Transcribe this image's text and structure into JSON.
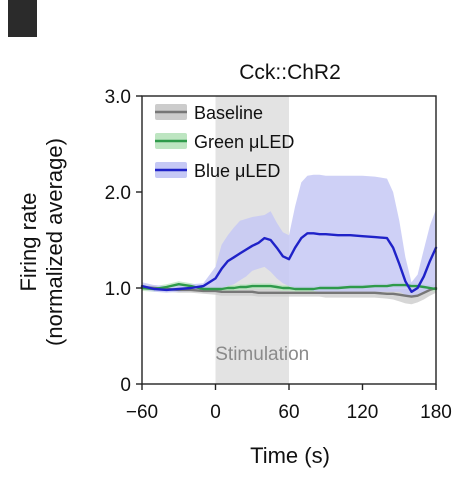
{
  "chart_data": {
    "type": "line",
    "title": "Cck::ChR2",
    "xlabel": "Time (s)",
    "ylabel_lines": [
      "Firing rate",
      "(normalized average)"
    ],
    "xlim": [
      -60,
      180
    ],
    "ylim": [
      0,
      3.0
    ],
    "xticks": [
      -60,
      0,
      60,
      120,
      180
    ],
    "xtick_labels": [
      "−60",
      "0",
      "60",
      "120",
      "180"
    ],
    "yticks": [
      0,
      1.0,
      2.0,
      3.0
    ],
    "ytick_labels": [
      "0",
      "1.0",
      "2.0",
      "3.0"
    ],
    "shaded_region": {
      "x": [
        0,
        60
      ],
      "label": "Stimulation",
      "color": "#e3e3e3"
    },
    "legend_position": "top-left",
    "x": [
      -60,
      -50,
      -40,
      -30,
      -20,
      -10,
      0,
      5,
      10,
      15,
      20,
      25,
      30,
      35,
      40,
      45,
      50,
      55,
      60,
      65,
      70,
      75,
      80,
      85,
      90,
      100,
      110,
      120,
      130,
      140,
      145,
      150,
      155,
      160,
      165,
      170,
      175,
      180
    ],
    "series": [
      {
        "name": "Baseline",
        "color": "#777777",
        "band_color": "#cccccc",
        "values": [
          1.01,
          1.0,
          0.99,
          0.98,
          0.98,
          0.97,
          0.97,
          0.96,
          0.96,
          0.96,
          0.96,
          0.96,
          0.96,
          0.95,
          0.95,
          0.95,
          0.95,
          0.95,
          0.95,
          0.95,
          0.95,
          0.95,
          0.95,
          0.95,
          0.95,
          0.95,
          0.95,
          0.95,
          0.95,
          0.94,
          0.94,
          0.93,
          0.92,
          0.91,
          0.92,
          0.95,
          0.98,
          1.0
        ],
        "lower": [
          0.98,
          0.97,
          0.96,
          0.95,
          0.95,
          0.94,
          0.93,
          0.92,
          0.92,
          0.92,
          0.92,
          0.92,
          0.92,
          0.91,
          0.91,
          0.91,
          0.91,
          0.91,
          0.91,
          0.91,
          0.91,
          0.91,
          0.91,
          0.91,
          0.9,
          0.9,
          0.9,
          0.9,
          0.9,
          0.89,
          0.88,
          0.86,
          0.84,
          0.83,
          0.85,
          0.88,
          0.92,
          0.95
        ],
        "upper": [
          1.04,
          1.03,
          1.02,
          1.01,
          1.01,
          1.0,
          1.0,
          1.0,
          1.0,
          1.0,
          1.0,
          1.0,
          1.0,
          0.99,
          0.99,
          0.99,
          0.99,
          0.99,
          0.99,
          0.99,
          0.99,
          0.99,
          0.99,
          0.99,
          0.99,
          0.99,
          0.99,
          0.99,
          0.99,
          0.99,
          0.99,
          0.99,
          0.99,
          0.99,
          0.99,
          1.01,
          1.03,
          1.05
        ]
      },
      {
        "name": "Green μLED",
        "color": "#2e9a4a",
        "band_color": "#bde5c1",
        "values": [
          1.0,
          0.99,
          1.01,
          1.04,
          1.02,
          0.99,
          0.99,
          0.99,
          1.0,
          1.0,
          1.01,
          1.01,
          1.02,
          1.02,
          1.02,
          1.02,
          1.01,
          1.0,
          1.0,
          0.99,
          0.99,
          0.99,
          0.99,
          1.0,
          1.0,
          1.0,
          1.01,
          1.01,
          1.02,
          1.02,
          1.03,
          1.03,
          1.03,
          1.02,
          1.02,
          1.01,
          1.0,
          0.99
        ],
        "lower": [
          0.97,
          0.96,
          0.98,
          1.01,
          0.99,
          0.96,
          0.96,
          0.96,
          0.97,
          0.97,
          0.98,
          0.98,
          0.99,
          0.99,
          0.99,
          0.99,
          0.98,
          0.97,
          0.97,
          0.96,
          0.96,
          0.96,
          0.96,
          0.97,
          0.97,
          0.97,
          0.98,
          0.98,
          0.99,
          0.99,
          1.0,
          1.0,
          1.0,
          0.99,
          0.99,
          0.98,
          0.97,
          0.96
        ],
        "upper": [
          1.03,
          1.02,
          1.04,
          1.07,
          1.05,
          1.02,
          1.02,
          1.02,
          1.03,
          1.03,
          1.04,
          1.04,
          1.05,
          1.05,
          1.05,
          1.05,
          1.04,
          1.03,
          1.03,
          1.02,
          1.02,
          1.02,
          1.02,
          1.03,
          1.03,
          1.03,
          1.04,
          1.04,
          1.05,
          1.05,
          1.06,
          1.06,
          1.06,
          1.05,
          1.05,
          1.04,
          1.03,
          1.02
        ]
      },
      {
        "name": "Blue μLED",
        "color": "#1f22c8",
        "band_color": "#c5c8f5",
        "values": [
          1.02,
          0.99,
          0.98,
          0.99,
          1.0,
          1.02,
          1.1,
          1.2,
          1.28,
          1.32,
          1.36,
          1.4,
          1.44,
          1.47,
          1.52,
          1.5,
          1.42,
          1.33,
          1.3,
          1.42,
          1.52,
          1.57,
          1.57,
          1.56,
          1.56,
          1.55,
          1.55,
          1.54,
          1.53,
          1.52,
          1.42,
          1.25,
          1.07,
          0.96,
          1.0,
          1.12,
          1.28,
          1.42
        ],
        "lower": [
          0.99,
          0.96,
          0.95,
          0.96,
          0.97,
          0.98,
          1.0,
          1.0,
          1.02,
          1.04,
          1.08,
          1.12,
          1.18,
          1.2,
          1.22,
          1.17,
          1.1,
          1.05,
          1.02,
          1.0,
          0.99,
          0.98,
          0.97,
          0.96,
          0.96,
          0.96,
          0.96,
          0.96,
          0.96,
          0.96,
          0.96,
          0.96,
          0.93,
          0.9,
          0.92,
          0.95,
          0.98,
          1.0
        ],
        "upper": [
          1.06,
          1.03,
          1.02,
          1.03,
          1.04,
          1.05,
          1.22,
          1.45,
          1.55,
          1.63,
          1.7,
          1.72,
          1.74,
          1.75,
          1.76,
          1.8,
          1.68,
          1.58,
          1.55,
          1.85,
          2.1,
          2.17,
          2.18,
          2.18,
          2.17,
          2.17,
          2.17,
          2.17,
          2.16,
          2.14,
          2.0,
          1.7,
          1.32,
          1.06,
          1.14,
          1.4,
          1.65,
          1.82
        ]
      }
    ]
  }
}
